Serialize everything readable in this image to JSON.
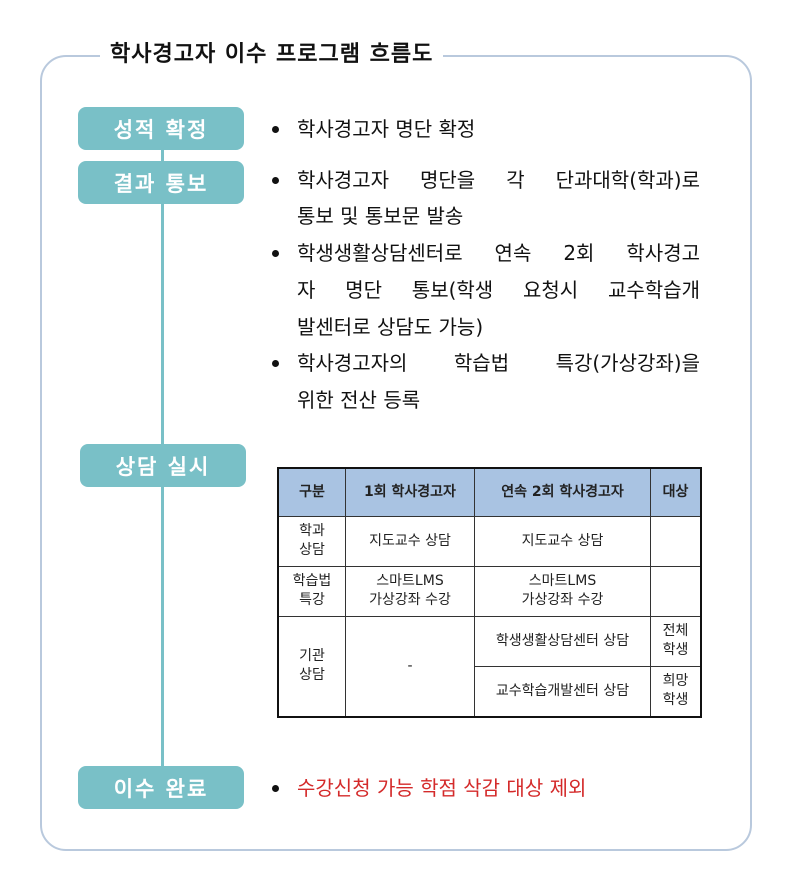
{
  "title": "학사경고자 이수 프로그램 흐름도",
  "steps": [
    {
      "label": "성적 확정",
      "bullets": [
        [
          "학사경고자 명단 확정"
        ]
      ]
    },
    {
      "label": "결과 통보",
      "bullets": [
        [
          "학사경고자 명단을 각 단과대학(학과)로",
          "통보 및 통보문 발송"
        ],
        [
          "학생생활상담센터로 연속 2회 학사경고",
          "자 명단 통보(학생 요청시 교수학습개",
          "발센터로 상담도 가능)"
        ],
        [
          "학사경고자의 학습법 특강(가상강좌)을",
          "위한 전산 등록"
        ]
      ]
    },
    {
      "label": "상담 실시"
    },
    {
      "label": "이수 완료",
      "bullets": [
        [
          "수강신청 가능 학점 삭감 대상 제외"
        ]
      ]
    }
  ],
  "table": {
    "headers": [
      "구분",
      "1회 학사경고자",
      "연속 2회 학사경고자",
      "대상"
    ],
    "rows": [
      {
        "type": [
          "학과",
          "상담"
        ],
        "first": "지도교수 상담",
        "second": "지도교수 상담",
        "target": ""
      },
      {
        "type": [
          "학습법",
          "특강"
        ],
        "first": [
          "스마트LMS",
          "가상강좌 수강"
        ],
        "second": [
          "스마트LMS",
          "가상강좌 수강"
        ],
        "target": ""
      },
      {
        "type": [
          "기관",
          "상담"
        ],
        "first": "-",
        "second": "학생생활상담센터 상담",
        "target": [
          "전체",
          "학생"
        ]
      },
      {
        "second": "교수학습개발센터 상담",
        "target": [
          "희망",
          "학생"
        ]
      }
    ]
  },
  "colors": {
    "pill": "#79c0c7",
    "frame": "#b9c9dd",
    "table_header": "#a9c3e2",
    "highlight": "#d42a2a"
  }
}
